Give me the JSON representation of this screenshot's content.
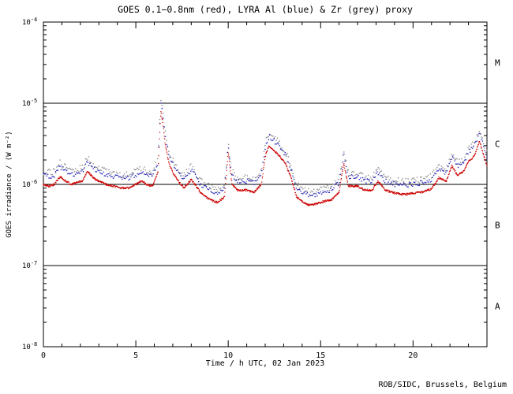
{
  "page": {
    "footer": "ROB/SIDC, Brussels, Belgium"
  },
  "chart_data": {
    "type": "scatter",
    "title": "GOES 0.1−0.8nm (red), LYRA Al (blue) & Zr (grey) proxy",
    "xlabel": "Time / h UTC, 02 Jan 2023",
    "ylabel": "GOES irradiance / (W m⁻²)",
    "xlim": [
      0,
      24
    ],
    "ylog": true,
    "ylim_exp": [
      -8,
      -4
    ],
    "x_major_ticks": [
      0,
      5,
      10,
      15,
      20
    ],
    "x_minor_step": 1,
    "y_tick_exponents": [
      -4,
      -5,
      -6,
      -7,
      -8
    ],
    "threshold_lines": [
      1e-05,
      1e-06,
      1e-07
    ],
    "flare_class_labels": [
      {
        "label": "M",
        "log_center": -4.5
      },
      {
        "label": "C",
        "log_center": -5.5
      },
      {
        "label": "B",
        "log_center": -6.5
      },
      {
        "label": "A",
        "log_center": -7.5
      }
    ],
    "colors": {
      "goes": "#cc0000",
      "al": "#2e2ebe",
      "zr": "#8c8c8c",
      "frame": "#000000"
    },
    "x": [
      0,
      0.3,
      0.6,
      0.9,
      1.2,
      1.5,
      1.8,
      2.1,
      2.4,
      2.7,
      3.0,
      3.4,
      3.8,
      4.2,
      4.6,
      5.0,
      5.3,
      5.6,
      5.9,
      6.2,
      6.35,
      6.45,
      6.6,
      6.8,
      7.0,
      7.3,
      7.6,
      8.0,
      8.2,
      8.5,
      9.0,
      9.4,
      9.8,
      10.0,
      10.2,
      10.5,
      11.0,
      11.4,
      11.8,
      12.0,
      12.2,
      12.5,
      12.8,
      13.1,
      13.4,
      13.7,
      14.0,
      14.4,
      14.8,
      15.2,
      15.6,
      16.0,
      16.25,
      16.5,
      17.0,
      17.4,
      17.8,
      18.1,
      18.5,
      19.0,
      19.5,
      20.0,
      20.5,
      21.0,
      21.4,
      21.8,
      22.1,
      22.4,
      22.7,
      23.0,
      23.3,
      23.6,
      23.8,
      24.0
    ],
    "series": [
      {
        "key": "goes",
        "name": "GOES 0.1-0.8nm",
        "values": [
          1e-06,
          9.5e-07,
          1e-06,
          1.25e-06,
          1.1e-06,
          1e-06,
          1.05e-06,
          1.1e-06,
          1.45e-06,
          1.2e-06,
          1.1e-06,
          1e-06,
          9.5e-07,
          9e-07,
          9e-07,
          1e-06,
          1.1e-06,
          1e-06,
          9.5e-07,
          1.4e-06,
          8e-06,
          6e-06,
          3e-06,
          1.8e-06,
          1.4e-06,
          1.1e-06,
          9e-07,
          1.15e-06,
          1e-06,
          8e-07,
          6.5e-07,
          6e-07,
          7e-07,
          2.5e-06,
          1e-06,
          8.5e-07,
          8.5e-07,
          8e-07,
          1e-06,
          2.2e-06,
          3e-06,
          2.6e-06,
          2.2e-06,
          1.8e-06,
          1.2e-06,
          7e-07,
          6.2e-07,
          5.5e-07,
          5.8e-07,
          6.2e-07,
          6.5e-07,
          8e-07,
          1.8e-06,
          9.5e-07,
          9.5e-07,
          8.5e-07,
          8.5e-07,
          1.1e-06,
          8.5e-07,
          7.8e-07,
          7.5e-07,
          7.8e-07,
          8e-07,
          8.8e-07,
          1.2e-06,
          1.1e-06,
          1.7e-06,
          1.3e-06,
          1.4e-06,
          1.9e-06,
          2.2e-06,
          3.4e-06,
          2.4e-06,
          1.7e-06
        ]
      },
      {
        "key": "al",
        "name": "LYRA Al proxy",
        "values": [
          1.3e-06,
          1.25e-06,
          1.3e-06,
          1.65e-06,
          1.45e-06,
          1.3e-06,
          1.35e-06,
          1.45e-06,
          1.9e-06,
          1.55e-06,
          1.45e-06,
          1.3e-06,
          1.25e-06,
          1.2e-06,
          1.2e-06,
          1.3e-06,
          1.4e-06,
          1.3e-06,
          1.25e-06,
          1.8e-06,
          1e-05,
          7.5e-06,
          3.8e-06,
          2.3e-06,
          1.8e-06,
          1.4e-06,
          1.15e-06,
          1.5e-06,
          1.3e-06,
          1e-06,
          8.5e-07,
          7.8e-07,
          9e-07,
          3e-06,
          1.3e-06,
          1.1e-06,
          1.1e-06,
          1.05e-06,
          1.35e-06,
          2.8e-06,
          3.9e-06,
          3.4e-06,
          2.8e-06,
          2.3e-06,
          1.55e-06,
          9e-07,
          8e-07,
          7.2e-07,
          7.5e-07,
          8e-07,
          8.5e-07,
          1.05e-06,
          2.3e-06,
          1.25e-06,
          1.25e-06,
          1.1e-06,
          1.1e-06,
          1.4e-06,
          1.1e-06,
          1e-06,
          9.8e-07,
          1e-06,
          1.05e-06,
          1.15e-06,
          1.55e-06,
          1.4e-06,
          2.2e-06,
          1.7e-06,
          1.8e-06,
          2.5e-06,
          2.9e-06,
          4.4e-06,
          3.1e-06,
          2.2e-06
        ]
      },
      {
        "key": "zr",
        "name": "LYRA Zr proxy",
        "values": [
          1.45e-06,
          1.4e-06,
          1.45e-06,
          1.85e-06,
          1.6e-06,
          1.45e-06,
          1.5e-06,
          1.6e-06,
          2.1e-06,
          1.75e-06,
          1.6e-06,
          1.45e-06,
          1.4e-06,
          1.3e-06,
          1.3e-06,
          1.45e-06,
          1.55e-06,
          1.45e-06,
          1.4e-06,
          2e-06,
          1.15e-05,
          8.5e-06,
          4.2e-06,
          2.6e-06,
          2e-06,
          1.55e-06,
          1.3e-06,
          1.65e-06,
          1.45e-06,
          1.1e-06,
          9.5e-07,
          8.5e-07,
          1e-06,
          3.4e-06,
          1.45e-06,
          1.2e-06,
          1.2e-06,
          1.15e-06,
          1.5e-06,
          3.1e-06,
          4.3e-06,
          3.8e-06,
          3.1e-06,
          2.5e-06,
          1.7e-06,
          1e-06,
          8.8e-07,
          8e-07,
          8.3e-07,
          8.8e-07,
          9.3e-07,
          1.15e-06,
          2.5e-06,
          1.4e-06,
          1.4e-06,
          1.2e-06,
          1.2e-06,
          1.55e-06,
          1.2e-06,
          1.1e-06,
          1.08e-06,
          1.1e-06,
          1.15e-06,
          1.25e-06,
          1.7e-06,
          1.55e-06,
          2.4e-06,
          1.85e-06,
          2e-06,
          2.7e-06,
          3.2e-06,
          4.8e-06,
          3.4e-06,
          2.4e-06
        ]
      }
    ]
  }
}
